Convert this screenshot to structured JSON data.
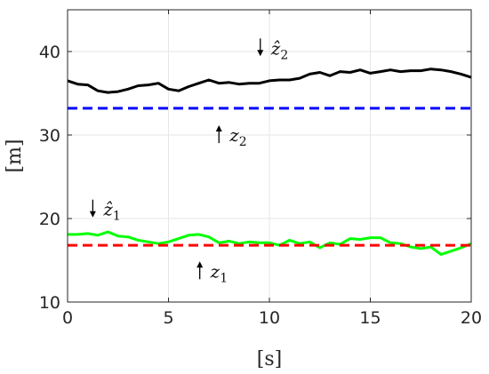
{
  "chart_data": {
    "type": "line",
    "xlabel": "[s]",
    "ylabel": "[m]",
    "xlim": [
      0,
      20
    ],
    "ylim": [
      10,
      45
    ],
    "x_ticks": [
      0,
      5,
      10,
      15,
      20
    ],
    "y_ticks": [
      10,
      20,
      30,
      40
    ],
    "grid": true,
    "series": [
      {
        "color": "#000000",
        "style": "solid",
        "x": [
          0,
          0.5,
          1,
          1.5,
          2,
          2.5,
          3,
          3.5,
          4,
          4.5,
          5,
          5.5,
          6,
          6.5,
          7,
          7.5,
          8,
          8.5,
          9,
          9.5,
          10,
          10.5,
          11,
          11.5,
          12,
          12.5,
          13,
          13.5,
          14,
          14.5,
          15,
          15.5,
          16,
          16.5,
          17,
          17.5,
          18,
          18.5,
          19,
          19.5,
          20
        ],
        "y": [
          36.5,
          36.1,
          36.0,
          35.3,
          35.1,
          35.2,
          35.5,
          35.9,
          36.0,
          36.2,
          35.5,
          35.3,
          35.8,
          36.2,
          36.6,
          36.2,
          36.3,
          36.1,
          36.2,
          36.2,
          36.5,
          36.6,
          36.6,
          36.8,
          37.3,
          37.5,
          37.1,
          37.6,
          37.5,
          37.8,
          37.4,
          37.6,
          37.8,
          37.6,
          37.7,
          37.7,
          37.9,
          37.8,
          37.6,
          37.3,
          36.9
        ]
      },
      {
        "color": "#0000ff",
        "style": "dashed",
        "x": [
          0,
          20
        ],
        "y": [
          33.2,
          33.2
        ]
      },
      {
        "color": "#00ff00",
        "style": "solid",
        "x": [
          0,
          0.5,
          1,
          1.5,
          2,
          2.5,
          3,
          3.5,
          4,
          4.5,
          5,
          5.5,
          6,
          6.5,
          7,
          7.5,
          8,
          8.5,
          9,
          9.5,
          10,
          10.5,
          11,
          11.5,
          12,
          12.5,
          13,
          13.5,
          14,
          14.5,
          15,
          15.5,
          16,
          16.5,
          17,
          17.5,
          18,
          18.5,
          19,
          19.5,
          20
        ],
        "y": [
          18.1,
          18.1,
          18.2,
          18.0,
          18.4,
          17.9,
          17.8,
          17.4,
          17.2,
          17.0,
          17.2,
          17.6,
          18.0,
          18.1,
          17.8,
          17.1,
          17.3,
          17.0,
          17.2,
          17.1,
          17.1,
          16.8,
          17.4,
          17.0,
          17.2,
          16.5,
          17.1,
          16.9,
          17.6,
          17.5,
          17.7,
          17.7,
          17.1,
          17.0,
          16.6,
          16.4,
          16.6,
          15.7,
          16.1,
          16.5,
          17.0
        ]
      },
      {
        "color": "#ff0000",
        "style": "dashed",
        "x": [
          0,
          20
        ],
        "y": [
          16.8,
          16.8
        ]
      }
    ],
    "annotations": [
      {
        "base": "ẑ",
        "sub": "2",
        "arrow": "down",
        "x": 9.55,
        "y": 40.5
      },
      {
        "base": "z",
        "sub": "2",
        "arrow": "up",
        "x": 7.5,
        "y": 30.1
      },
      {
        "base": "ẑ",
        "sub": "1",
        "arrow": "down",
        "x": 1.25,
        "y": 21.2
      },
      {
        "base": "z",
        "sub": "1",
        "arrow": "up",
        "x": 6.55,
        "y": 13.8
      }
    ]
  }
}
